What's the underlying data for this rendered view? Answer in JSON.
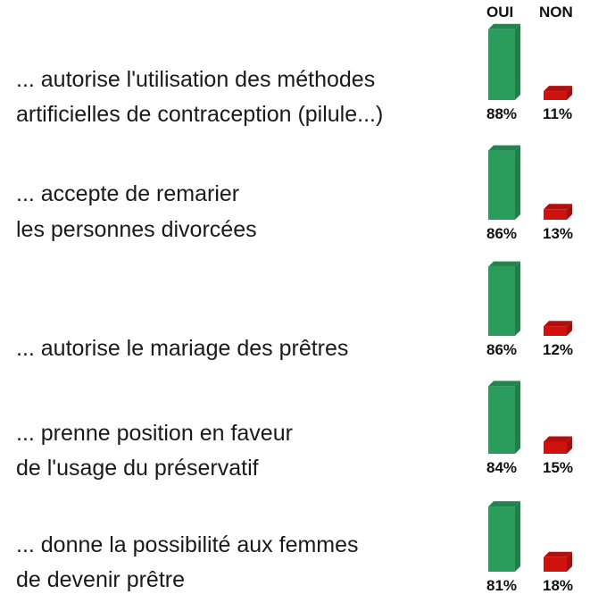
{
  "colors": {
    "oui": "#2a9d5c",
    "non": "#d0120f"
  },
  "chart_data": {
    "type": "bar",
    "legend": [
      "OUI",
      "NON"
    ],
    "categories": [
      [
        "... autorise l'utilisation des méthodes",
        "artificielles de contraception (pilule...)"
      ],
      [
        "... accepte de remarier",
        "les personnes divorcées"
      ],
      [
        "... autorise le mariage des prêtres"
      ],
      [
        "... prenne position en faveur",
        "de l'usage du préservatif"
      ],
      [
        "... donne la possibilité aux femmes",
        "de devenir prêtre"
      ]
    ],
    "series": [
      {
        "name": "OUI",
        "values": [
          88,
          86,
          86,
          84,
          81
        ],
        "labels": [
          "88%",
          "86%",
          "86%",
          "84%",
          "81%"
        ]
      },
      {
        "name": "NON",
        "values": [
          11,
          13,
          12,
          15,
          18
        ],
        "labels": [
          "11%",
          "13%",
          "12%",
          "15%",
          "18%"
        ]
      }
    ],
    "ylim": [
      0,
      100
    ]
  }
}
